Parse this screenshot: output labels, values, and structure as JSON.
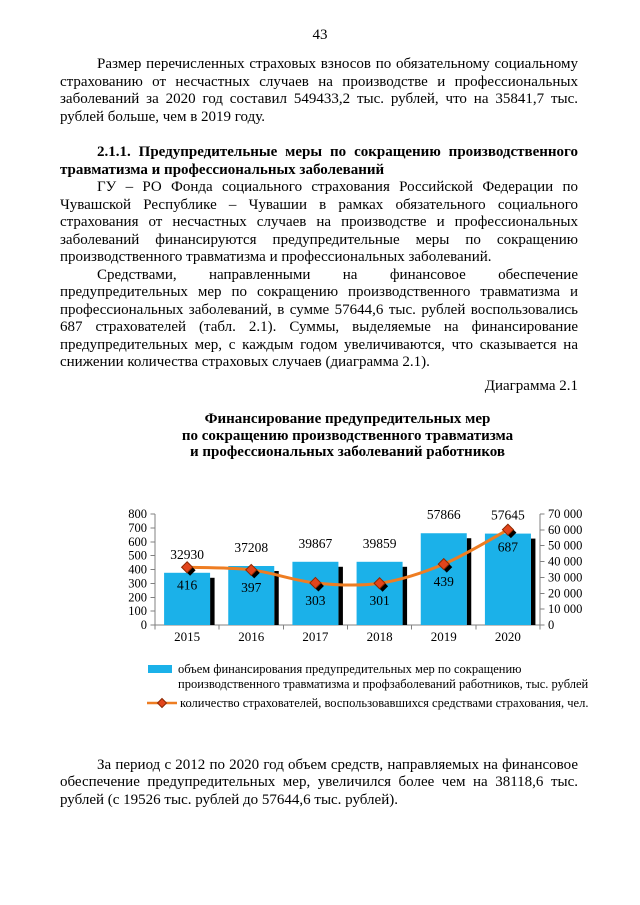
{
  "page": {
    "number": "43",
    "paragraph1": "Размер перечисленных страховых взносов по обязательному социальному страхованию от несчастных случаев на производстве и профессиональных заболеваний за 2020 год составил 549433,2 тыс. рублей, что на 35841,7 тыс. рублей больше, чем в 2019 году.",
    "heading": "2.1.1. Предупредительные меры по сокращению производственного травматизма и профессиональных заболеваний",
    "paragraph2": "ГУ – РО Фонда социального страхования Российской Федерации по Чувашской Республике – Чувашии в рамках обязательного социального страхования от несчастных случаев на производстве и профессиональных заболеваний финансируются предупредительные меры по сокращению производственного травматизма и профессиональных заболеваний.",
    "paragraph3": "Средствами, направленными на финансовое обеспечение предупредительных мер по сокращению производственного травматизма и профессиональных заболеваний, в сумме 57644,6 тыс. рублей воспользовались 687 страхователей (табл. 2.1). Суммы, выделяемые на финансирование предупредительных мер, с каждым годом увеличиваются, что сказывается на снижении количества страховых случаев (диаграмма 2.1).",
    "diagram_label": "Диаграмма 2.1",
    "paragraph4": "За период с 2012 по 2020 год объем средств, направляемых на финансовое обеспечение предупредительных мер, увеличился более чем на 38118,6 тыс. рублей (с 19526 тыс. рублей до 57644,6 тыс. рублей)."
  },
  "chart_data": {
    "type": "bar+line combo",
    "title": "Финансирование предупредительных мер по сокращению производственного травматизма и профессиональных заболеваний работников",
    "title_lines": [
      "Финансирование предупредительных мер",
      "по сокращению производственного травматизма",
      "и профессиональных заболеваний работников"
    ],
    "categories": [
      "2015",
      "2016",
      "2017",
      "2018",
      "2019",
      "2020"
    ],
    "series": [
      {
        "name": "объем финансирования предупредительных мер по сокращению производственного травматизма и профзаболеваний работников, тыс. рублей",
        "type": "bar",
        "axis": "right",
        "values": [
          32930,
          37208,
          39867,
          39859,
          57866,
          57645
        ],
        "color": "#1bb1e9",
        "shadow_color": "#000000"
      },
      {
        "name": "количество страхователей, воспользовавшихся средствами страхования, чел.",
        "type": "line",
        "axis": "left",
        "values": [
          416,
          397,
          303,
          301,
          439,
          687
        ],
        "color": "#ee7d22",
        "marker_color": "#e2451c",
        "marker_edge_color": "#8c2800",
        "shadow_color": "#000000"
      }
    ],
    "left_axis": {
      "min": 0,
      "max": 800,
      "step": 100
    },
    "right_axis": {
      "min": 0,
      "max": 70000,
      "step": 10000,
      "thousands_separator": " "
    },
    "axis_color": "#808080",
    "grid": false,
    "legend_position": "bottom"
  }
}
